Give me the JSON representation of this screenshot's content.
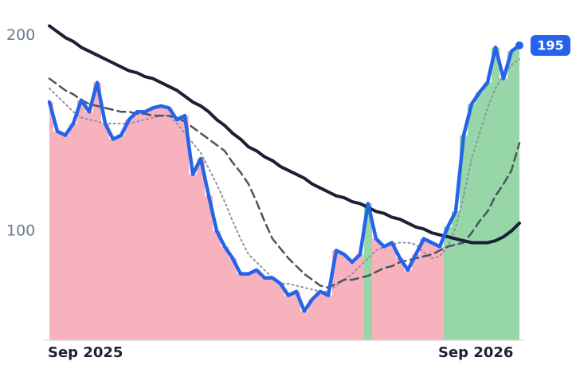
{
  "chart_data": {
    "type": "line",
    "categories": [
      "Sep 2025",
      null,
      null,
      null,
      null,
      null,
      null,
      null,
      null,
      null,
      null,
      null,
      null,
      null,
      null,
      null,
      null,
      null,
      null,
      null,
      null,
      null,
      null,
      null,
      null,
      null,
      null,
      null,
      null,
      null,
      null,
      null,
      null,
      null,
      null,
      null,
      null,
      null,
      null,
      null,
      null,
      null,
      null,
      null,
      null,
      null,
      null,
      null,
      null,
      "Sep 2026",
      null,
      null,
      null,
      null,
      null,
      null,
      null,
      null,
      null,
      null
    ],
    "series": [
      {
        "color": "#2563eb",
        "style": "solid",
        "width": 4.5,
        "values": [
          166,
          151,
          149,
          155,
          167,
          161,
          176,
          155,
          147,
          149,
          157,
          161,
          161,
          163,
          164,
          163,
          157,
          159,
          129,
          137,
          118,
          100,
          92,
          86,
          78,
          78,
          80,
          76,
          76,
          73,
          67,
          69,
          59,
          65,
          69,
          67,
          90,
          88,
          84,
          88,
          114,
          96,
          92,
          94,
          86,
          80,
          88,
          96,
          94,
          92,
          102,
          110,
          149,
          165,
          171,
          176,
          194,
          178,
          192,
          195
        ]
      },
      {
        "color": "#1b2135",
        "style": "solid",
        "width": 4,
        "values": [
          205,
          202,
          199,
          197,
          194,
          192,
          190,
          188,
          186,
          184,
          182,
          181,
          179,
          178,
          176,
          174,
          172,
          169,
          166,
          164,
          161,
          157,
          154,
          150,
          147,
          143,
          141,
          138,
          136,
          133,
          131,
          129,
          127,
          124,
          122,
          120,
          118,
          117,
          115,
          114,
          112,
          110,
          109,
          107,
          106,
          104,
          102,
          101,
          99,
          98,
          97,
          96,
          95,
          94,
          94,
          94,
          95,
          97,
          100,
          104
        ]
      },
      {
        "color": "#4b5563",
        "style": "dashed",
        "width": 2.5,
        "values": [
          178,
          175,
          172,
          170,
          167,
          165,
          164,
          163,
          162,
          161,
          161,
          160,
          160,
          159,
          159,
          159,
          158,
          156,
          153,
          150,
          147,
          144,
          141,
          135,
          130,
          124,
          115,
          105,
          96,
          91,
          86,
          82,
          78,
          75,
          72,
          71,
          73,
          75,
          75,
          76,
          77,
          79,
          81,
          82,
          84,
          85,
          86,
          87,
          88,
          90,
          92,
          93,
          94,
          99,
          105,
          110,
          118,
          124,
          131,
          145
        ]
      },
      {
        "color": "#8a94a6",
        "style": "dotted",
        "width": 2,
        "values": [
          173,
          169,
          165,
          161,
          158,
          157,
          156,
          155,
          155,
          155,
          155,
          156,
          157,
          158,
          159,
          159,
          155,
          150,
          145,
          140,
          132,
          124,
          115,
          105,
          96,
          88,
          84,
          80,
          76,
          73,
          73,
          72,
          71,
          70,
          69,
          69,
          72,
          75,
          78,
          82,
          86,
          90,
          92,
          93,
          94,
          94,
          93,
          89,
          86,
          87,
          92,
          102,
          118,
          137,
          150,
          163,
          173,
          180,
          185,
          188
        ]
      }
    ],
    "fill_below": "#f6a5b2",
    "fill_above": "#84cf98",
    "ylim": [
      44,
      206
    ],
    "yticks": [
      100,
      200
    ],
    "grid": false
  }
}
